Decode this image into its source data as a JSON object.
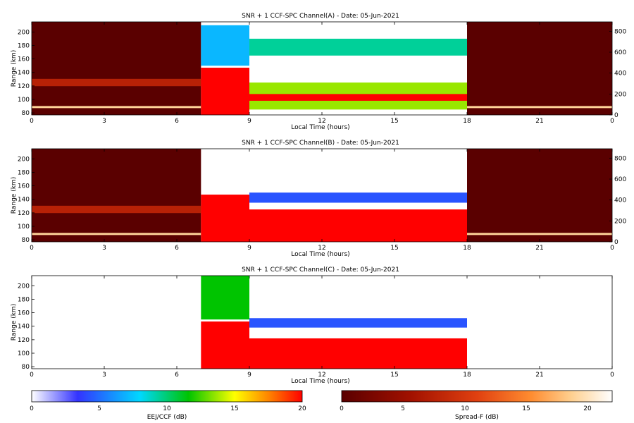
{
  "chart_data": [
    {
      "type": "heatmap",
      "title": "SNR + 1 CCF-SPC Channel(A) - Date: 05-Jun-2021",
      "xlabel": "Local Time (hours)",
      "ylabel": "Range (km)",
      "x_ticks": [
        "0",
        "3",
        "6",
        "9",
        "12",
        "15",
        "18",
        "21",
        "0"
      ],
      "y_ticks": [
        "80",
        "100",
        "120",
        "140",
        "160",
        "180",
        "200"
      ],
      "y2_ticks": [
        "0",
        "200",
        "400",
        "600",
        "800"
      ],
      "x_range": [
        0,
        24
      ],
      "y_range": [
        77,
        215
      ],
      "y2_range": [
        0,
        890
      ],
      "segments": [
        {
          "mode": "Spread-F",
          "x_range": [
            0,
            7
          ],
          "axis": "right",
          "layers": [
            {
              "y": [
                65,
                85
              ],
              "snr_db": 18
            },
            {
              "y": [
                275,
                345
              ],
              "snr_db": 6
            }
          ]
        },
        {
          "mode": "EEJ/CCF",
          "x_range": [
            7,
            9
          ],
          "layers": [
            {
              "y": [
                77,
                147
              ],
              "snr_db": 20
            },
            {
              "y": [
                150,
                210
              ],
              "snr_db": 6
            }
          ]
        },
        {
          "mode": "EEJ/CCF",
          "x_range": [
            9,
            18
          ],
          "layers": [
            {
              "y": [
                165,
                190
              ],
              "snr_db": 8
            },
            {
              "y": [
                85,
                125
              ],
              "snr_db": 12
            },
            {
              "y": [
                98,
                108
              ],
              "snr_db": 20
            }
          ]
        },
        {
          "mode": "Spread-F",
          "x_range": [
            18,
            24
          ],
          "axis": "right",
          "layers": [
            {
              "y": [
                65,
                85
              ],
              "snr_db": 18
            }
          ]
        }
      ]
    },
    {
      "type": "heatmap",
      "title": "SNR + 1 CCF-SPC Channel(B) - Date: 05-Jun-2021",
      "xlabel": "Local Time (hours)",
      "ylabel": "Range (km)",
      "x_ticks": [
        "0",
        "3",
        "6",
        "9",
        "12",
        "15",
        "18",
        "21",
        "0"
      ],
      "y_ticks": [
        "80",
        "100",
        "120",
        "140",
        "160",
        "180",
        "200"
      ],
      "y2_ticks": [
        "0",
        "200",
        "400",
        "600",
        "800"
      ],
      "x_range": [
        0,
        24
      ],
      "y_range": [
        77,
        215
      ],
      "y2_range": [
        0,
        890
      ],
      "segments": [
        {
          "mode": "Spread-F",
          "x_range": [
            0,
            7
          ],
          "axis": "right",
          "layers": [
            {
              "y": [
                65,
                85
              ],
              "snr_db": 18
            },
            {
              "y": [
                275,
                345
              ],
              "snr_db": 6
            }
          ]
        },
        {
          "mode": "EEJ/CCF",
          "x_range": [
            7,
            9
          ],
          "layers": [
            {
              "y": [
                77,
                147
              ],
              "snr_db": 20
            }
          ]
        },
        {
          "mode": "EEJ/CCF",
          "x_range": [
            9,
            18
          ],
          "layers": [
            {
              "y": [
                77,
                125
              ],
              "snr_db": 20
            },
            {
              "y": [
                135,
                150
              ],
              "snr_db": 4
            }
          ]
        },
        {
          "mode": "Spread-F",
          "x_range": [
            18,
            24
          ],
          "axis": "right",
          "layers": [
            {
              "y": [
                65,
                85
              ],
              "snr_db": 18
            }
          ]
        }
      ]
    },
    {
      "type": "heatmap",
      "title": "SNR + 1 CCF-SPC Channel(C) - Date: 05-Jun-2021",
      "xlabel": "Local Time (hours)",
      "ylabel": "Range (km)",
      "x_ticks": [
        "0",
        "3",
        "6",
        "9",
        "12",
        "15",
        "18",
        "21",
        "0"
      ],
      "y_ticks": [
        "80",
        "100",
        "120",
        "140",
        "160",
        "180",
        "200"
      ],
      "y2_ticks": [],
      "x_range": [
        0,
        24
      ],
      "y_range": [
        77,
        215
      ],
      "y2_range": [
        0,
        890
      ],
      "segments": [
        {
          "mode": "EEJ/CCF",
          "x_range": [
            7,
            9
          ],
          "layers": [
            {
              "y": [
                77,
                147
              ],
              "snr_db": 20
            },
            {
              "y": [
                150,
                215
              ],
              "snr_db": 10
            }
          ]
        },
        {
          "mode": "EEJ/CCF",
          "x_range": [
            9,
            18
          ],
          "layers": [
            {
              "y": [
                77,
                122
              ],
              "snr_db": 20
            },
            {
              "y": [
                138,
                152
              ],
              "snr_db": 4
            }
          ]
        }
      ]
    }
  ],
  "colorbars": [
    {
      "label": "EEJ/CCF (dB)",
      "ticks": [
        "0",
        "5",
        "10",
        "15",
        "20"
      ],
      "range": [
        0,
        20
      ],
      "stops": [
        "#ffffff",
        "#3333ff",
        "#00d8ff",
        "#00c400",
        "#ffff00",
        "#ff8000",
        "#ff0000"
      ]
    },
    {
      "label": "Spread-F (dB)",
      "ticks": [
        "0",
        "5",
        "10",
        "15",
        "20"
      ],
      "range": [
        0,
        22
      ],
      "stops": [
        "#5a0000",
        "#a01000",
        "#e04010",
        "#ff8c30",
        "#ffd090",
        "#ffffff"
      ]
    }
  ]
}
